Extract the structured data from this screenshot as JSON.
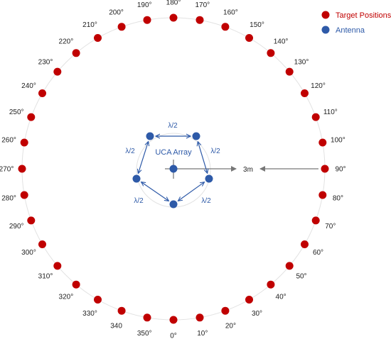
{
  "legend": {
    "target_label": "Target Positions",
    "antenna_label": "Antenna",
    "target_color": "#c00000",
    "antenna_color": "#2e5aa8"
  },
  "array": {
    "label": "UCA Array",
    "spacing_labels": [
      "λ/2",
      "λ/2",
      "λ/2",
      "λ/2",
      "λ/2"
    ]
  },
  "distance": {
    "label": "3m"
  },
  "targets": [
    {
      "angle": 0,
      "label": "0°"
    },
    {
      "angle": 10,
      "label": "10°"
    },
    {
      "angle": 20,
      "label": "20°"
    },
    {
      "angle": 30,
      "label": "30°"
    },
    {
      "angle": 40,
      "label": "40°"
    },
    {
      "angle": 50,
      "label": "50°"
    },
    {
      "angle": 60,
      "label": "60°"
    },
    {
      "angle": 70,
      "label": "70°"
    },
    {
      "angle": 80,
      "label": "80°"
    },
    {
      "angle": 90,
      "label": "90°"
    },
    {
      "angle": 100,
      "label": "100°"
    },
    {
      "angle": 110,
      "label": "110°"
    },
    {
      "angle": 120,
      "label": "120°"
    },
    {
      "angle": 130,
      "label": "130°"
    },
    {
      "angle": 140,
      "label": "140°"
    },
    {
      "angle": 150,
      "label": "150°"
    },
    {
      "angle": 160,
      "label": "160°"
    },
    {
      "angle": 170,
      "label": "170°"
    },
    {
      "angle": 180,
      "label": "180°"
    },
    {
      "angle": 190,
      "label": "190°"
    },
    {
      "angle": 200,
      "label": "200°"
    },
    {
      "angle": 210,
      "label": "210°"
    },
    {
      "angle": 220,
      "label": "220°"
    },
    {
      "angle": 230,
      "label": "230°"
    },
    {
      "angle": 240,
      "label": "240°"
    },
    {
      "angle": 250,
      "label": "250°"
    },
    {
      "angle": 260,
      "label": "260°"
    },
    {
      "angle": 270,
      "label": "270°"
    },
    {
      "angle": 280,
      "label": "280°"
    },
    {
      "angle": 290,
      "label": "290°"
    },
    {
      "angle": 300,
      "label": "300°"
    },
    {
      "angle": 310,
      "label": "310°"
    },
    {
      "angle": 320,
      "label": "320°"
    },
    {
      "angle": 330,
      "label": "330°"
    },
    {
      "angle": 340,
      "label": "340"
    },
    {
      "angle": 350,
      "label": "350°"
    }
  ]
}
